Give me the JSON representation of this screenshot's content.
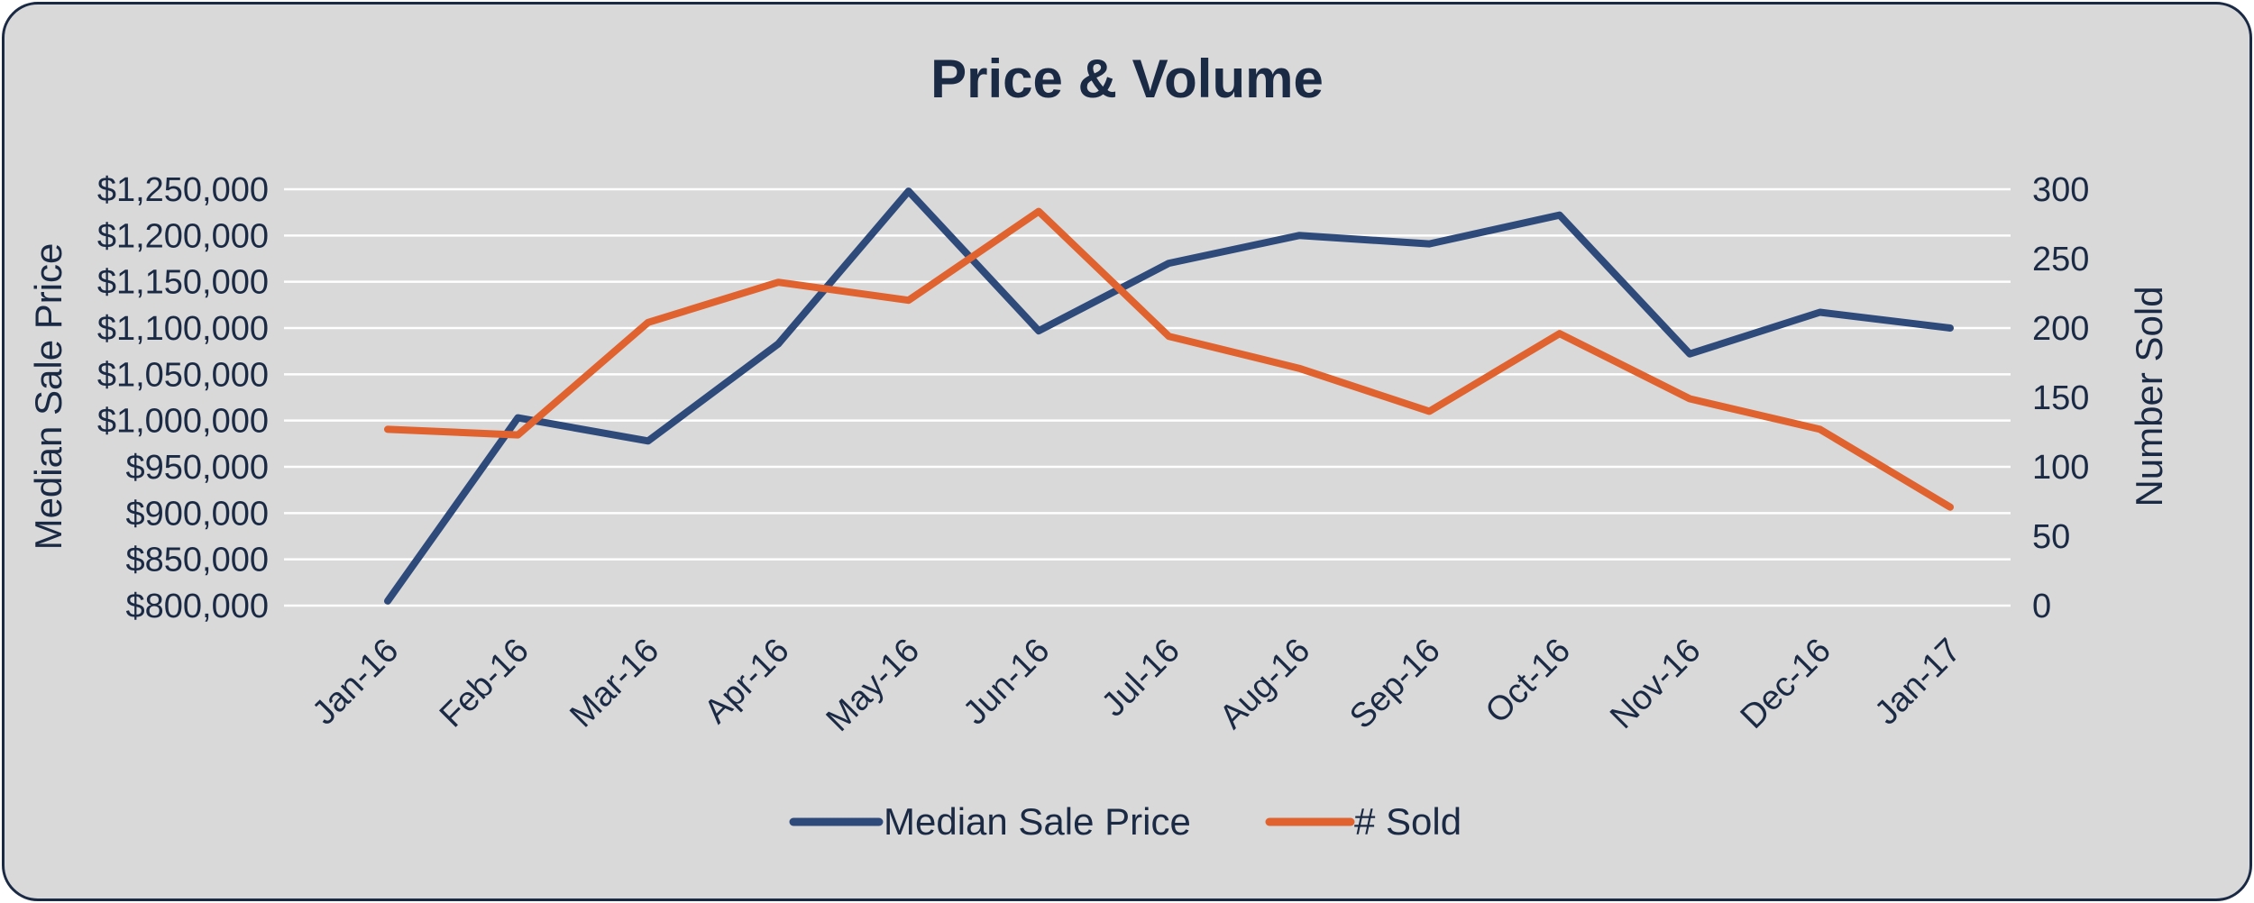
{
  "chart_data": {
    "type": "line",
    "title": "Price & Volume",
    "categories": [
      "Jan-16",
      "Feb-16",
      "Mar-16",
      "Apr-16",
      "May-16",
      "Jun-16",
      "Jul-16",
      "Aug-16",
      "Sep-16",
      "Oct-16",
      "Nov-16",
      "Dec-16",
      "Jan-17"
    ],
    "y_left": {
      "label": "Median Sale Price",
      "range": [
        800000,
        1250000
      ],
      "ticks": [
        800000,
        850000,
        900000,
        950000,
        1000000,
        1050000,
        1100000,
        1150000,
        1200000,
        1250000
      ],
      "tick_labels": [
        "$800,000",
        "$850,000",
        "$900,000",
        "$950,000",
        "$1,000,000",
        "$1,050,000",
        "$1,100,000",
        "$1,150,000",
        "$1,200,000",
        "$1,250,000"
      ]
    },
    "y_right": {
      "label": "Number Sold",
      "range": [
        0,
        300
      ],
      "ticks": [
        0,
        50,
        100,
        150,
        200,
        250,
        300
      ],
      "tick_labels": [
        "0",
        "50",
        "100",
        "150",
        "200",
        "250",
        "300"
      ]
    },
    "series": [
      {
        "name": "Median Sale Price",
        "axis": "left",
        "color": "#2e4a7a",
        "values": [
          805000,
          1003000,
          978000,
          1083000,
          1248000,
          1097000,
          1170000,
          1200000,
          1191000,
          1222000,
          1072000,
          1117000,
          1100000
        ]
      },
      {
        "name": "# Sold",
        "axis": "right",
        "color": "#e0622f",
        "values": [
          127,
          123,
          204,
          233,
          220,
          284,
          194,
          171,
          140,
          196,
          149,
          127,
          71
        ]
      }
    ],
    "grid": true,
    "legend_position": "bottom"
  }
}
